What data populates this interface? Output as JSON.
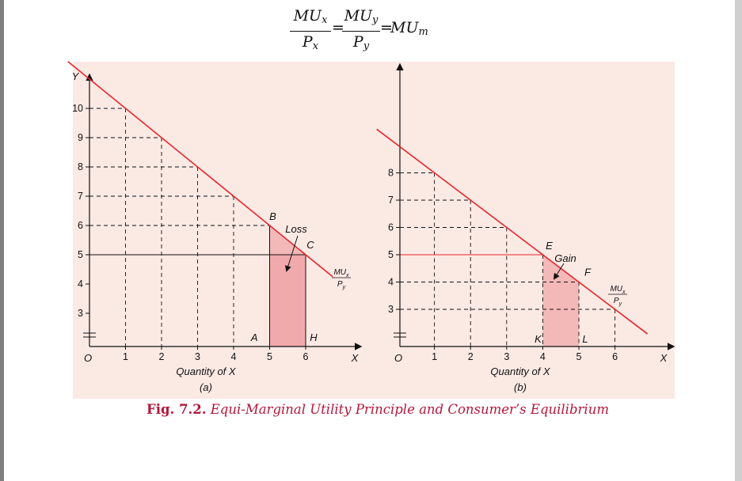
{
  "formula": {
    "mux": "MU",
    "mux_sub": "x",
    "px": "P",
    "px_sub": "x",
    "muy": "MU",
    "muy_sub": "y",
    "py": "P",
    "py_sub": "y",
    "eq1": "=",
    "eq2": "=",
    "mum": "MU",
    "mum_sub": "m"
  },
  "caption": {
    "fig": "Fig. 7.2.",
    "text": "Equi-Marginal Utility Principle and Consumer’s Equilibrium"
  },
  "colors": {
    "curve": "#e8262b",
    "shade": "#f3b8b8",
    "text": "#111111",
    "caption": "#b4173a"
  },
  "chart_data": [
    {
      "type": "line",
      "x_axis_label": "X",
      "y_axis_label": "Y",
      "origin_label": "O",
      "xlabel": "Quantity of X",
      "sublabel": "(a)",
      "x_ticks": [
        1,
        2,
        3,
        4,
        5,
        6
      ],
      "y_ticks": [
        3,
        4,
        5,
        6,
        7,
        8,
        9,
        10
      ],
      "series": [
        {
          "name": "",
          "x": [
            1,
            2,
            3,
            4,
            5,
            6
          ],
          "y": [
            10,
            9,
            8,
            7,
            6,
            5
          ]
        }
      ],
      "curve_label_num": "MU",
      "curve_label_num_sub": "x",
      "curve_label_den": "P",
      "curve_label_den_sub": "y",
      "guide_level": 5,
      "shaded_region": {
        "x_from": 5,
        "x_to": 6,
        "label": "Loss"
      },
      "points": {
        "A": [
          5,
          0
        ],
        "B": [
          5,
          6
        ],
        "C": [
          6,
          5
        ],
        "H": [
          6,
          0
        ]
      }
    },
    {
      "type": "line",
      "x_axis_label": "X",
      "origin_label": "O",
      "xlabel": "Quantity of X",
      "sublabel": "(b)",
      "x_ticks": [
        1,
        2,
        3,
        4,
        5,
        6
      ],
      "y_ticks": [
        3,
        4,
        5,
        6,
        7,
        8
      ],
      "series": [
        {
          "name": "",
          "x": [
            1,
            2,
            3,
            4,
            5,
            6
          ],
          "y": [
            8,
            7,
            6,
            5,
            4,
            3
          ]
        }
      ],
      "curve_label_num": "MU",
      "curve_label_num_sub": "x",
      "curve_label_den": "P",
      "curve_label_den_sub": "y",
      "guide_level": 5,
      "shaded_region": {
        "x_from": 4,
        "x_to": 5,
        "label": "Gain"
      },
      "points": {
        "E": [
          4,
          5
        ],
        "F": [
          5,
          4
        ],
        "K": [
          4,
          0
        ],
        "L": [
          5,
          0
        ]
      }
    }
  ]
}
